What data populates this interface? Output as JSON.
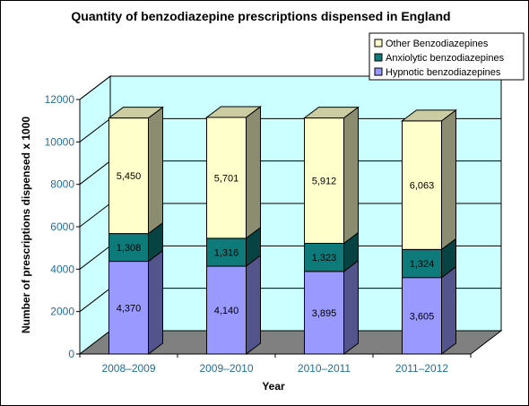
{
  "chart_data": {
    "type": "bar",
    "stacked": true,
    "three_d": true,
    "title": "Quantity of benzodiazepine prescriptions dispensed in England",
    "xlabel": "Year",
    "ylabel": "Number of prescriptions dispensed x 1000",
    "ylim": [
      0,
      12000
    ],
    "yticks": [
      0,
      2000,
      4000,
      6000,
      8000,
      10000,
      12000
    ],
    "categories": [
      "2008–2009",
      "2009–2010",
      "2010–2011",
      "2011–2012"
    ],
    "series": [
      {
        "name": "Hypnotic benzodiazepines",
        "values": [
          4370,
          4140,
          3895,
          3605
        ],
        "labels": [
          "4,370",
          "4,140",
          "3,895",
          "3,605"
        ],
        "color": "#9999ff"
      },
      {
        "name": "Anxiolytic benzodiazepines",
        "values": [
          1308,
          1316,
          1323,
          1324
        ],
        "labels": [
          "1,308",
          "1,316",
          "1,323",
          "1,324"
        ],
        "color": "#0f7a7a"
      },
      {
        "name": "Other Benzodiazepines",
        "values": [
          5450,
          5701,
          5912,
          6063
        ],
        "labels": [
          "5,450",
          "5,701",
          "5,912",
          "6,063"
        ],
        "color": "#ffffcc"
      }
    ],
    "legend": {
      "position": "top-right",
      "entries": [
        "Other Benzodiazepines",
        "Anxiolytic benzodiazepines",
        "Hypnotic benzodiazepines"
      ]
    },
    "grid": true,
    "colors": {
      "wall": "#ccffff",
      "floor": "#808080",
      "tick_text": "#1f6f9a"
    }
  }
}
